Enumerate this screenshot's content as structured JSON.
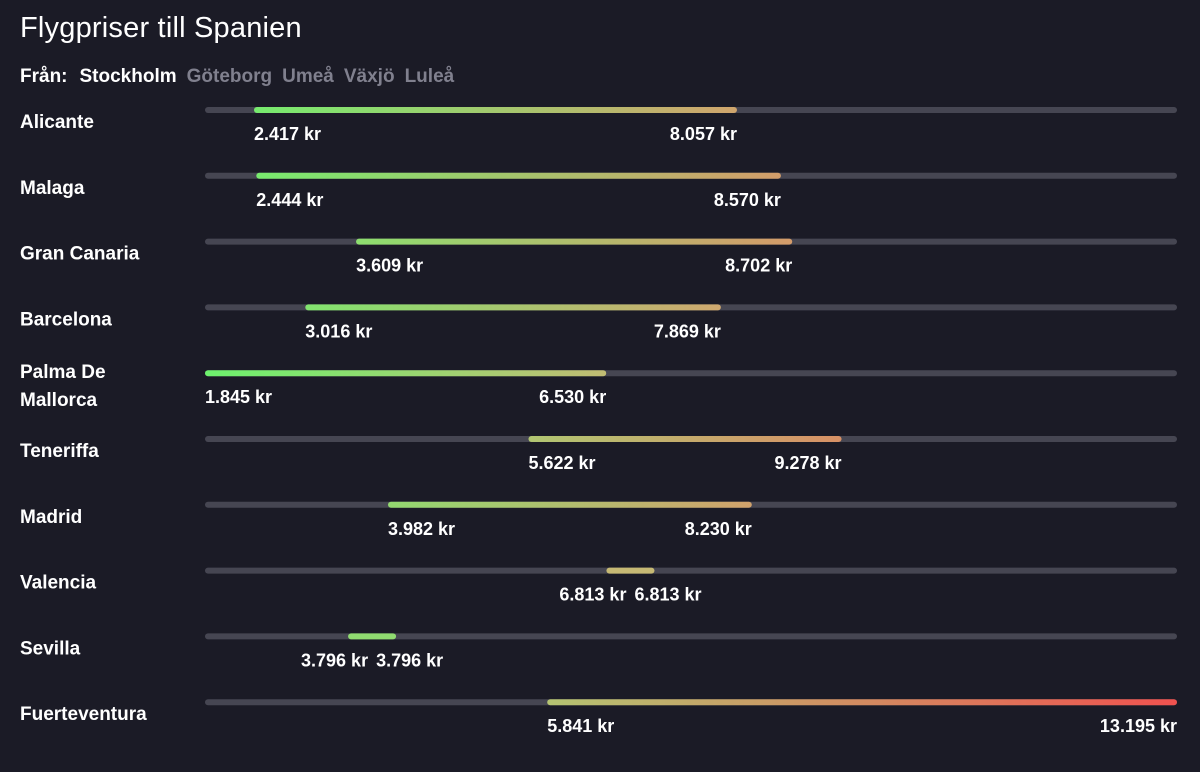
{
  "header": {
    "title": "Flygpriser till Spanien",
    "from_label": "Från:",
    "origins": [
      {
        "label": "Stockholm",
        "active": true
      },
      {
        "label": "Göteborg",
        "active": false
      },
      {
        "label": "Umeå",
        "active": false
      },
      {
        "label": "Växjö",
        "active": false
      },
      {
        "label": "Luleå",
        "active": false
      }
    ]
  },
  "colors": {
    "background": "#1b1b26",
    "track": "#464652",
    "low": "#6df26d",
    "mid": "#c9b774",
    "high": "#f0524f",
    "inactive_text": "#80808e"
  },
  "chart_data": {
    "type": "range-bar",
    "title": "Flygpriser till Spanien",
    "unit": "kr",
    "xlim": [
      1845,
      13195
    ],
    "series": [
      {
        "name": "Alicante",
        "label_lines": [
          "Alicante"
        ],
        "min": 2417,
        "max": 8057,
        "min_label": "2.417 kr",
        "max_label": "8.057 kr"
      },
      {
        "name": "Malaga",
        "label_lines": [
          "Malaga"
        ],
        "min": 2444,
        "max": 8570,
        "min_label": "2.444 kr",
        "max_label": "8.570 kr"
      },
      {
        "name": "Gran Canaria",
        "label_lines": [
          "Gran Canaria"
        ],
        "min": 3609,
        "max": 8702,
        "min_label": "3.609 kr",
        "max_label": "8.702 kr"
      },
      {
        "name": "Barcelona",
        "label_lines": [
          "Barcelona"
        ],
        "min": 3016,
        "max": 7869,
        "min_label": "3.016 kr",
        "max_label": "7.869 kr"
      },
      {
        "name": "Palma De Mallorca",
        "label_lines": [
          "Palma De",
          "Mallorca"
        ],
        "min": 1845,
        "max": 6530,
        "min_label": "1.845 kr",
        "max_label": "6.530 kr"
      },
      {
        "name": "Teneriffa",
        "label_lines": [
          "Teneriffa"
        ],
        "min": 5622,
        "max": 9278,
        "min_label": "5.622 kr",
        "max_label": "9.278 kr"
      },
      {
        "name": "Madrid",
        "label_lines": [
          "Madrid"
        ],
        "min": 3982,
        "max": 8230,
        "min_label": "3.982 kr",
        "max_label": "8.230 kr"
      },
      {
        "name": "Valencia",
        "label_lines": [
          "Valencia"
        ],
        "min": 6813,
        "max": 6813,
        "min_label": "6.813 kr",
        "max_label": "6.813 kr"
      },
      {
        "name": "Sevilla",
        "label_lines": [
          "Sevilla"
        ],
        "min": 3796,
        "max": 3796,
        "min_label": "3.796 kr",
        "max_label": "3.796 kr"
      },
      {
        "name": "Fuerteventura",
        "label_lines": [
          "Fuerteventura"
        ],
        "min": 5841,
        "max": 13195,
        "min_label": "5.841 kr",
        "max_label": "13.195 kr"
      }
    ]
  }
}
